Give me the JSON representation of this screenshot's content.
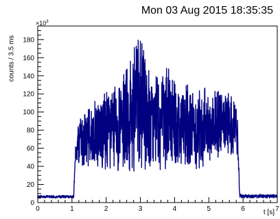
{
  "header": {
    "timestamp": "Mon 03 Aug 2015 18:35:35"
  },
  "chart_data": {
    "type": "line",
    "title": "",
    "xlabel": "t [s]",
    "ylabel": "counts / 3.5 ms",
    "y_multiplier_label": "×10",
    "y_multiplier_exponent": "3",
    "xlim": [
      0,
      7
    ],
    "ylim": [
      0,
      195
    ],
    "x_ticks": [
      0,
      1,
      2,
      3,
      4,
      5,
      6,
      7
    ],
    "y_ticks": [
      0,
      20,
      40,
      60,
      80,
      100,
      120,
      140,
      160,
      180
    ],
    "grid": false,
    "series": [
      {
        "color": "#000080",
        "envelope": {
          "x": [
            0.0,
            1.0,
            1.05,
            1.1,
            1.2,
            1.4,
            1.6,
            1.8,
            2.0,
            2.2,
            2.4,
            2.6,
            2.8,
            3.0,
            3.2,
            3.4,
            3.6,
            3.8,
            4.0,
            4.2,
            4.4,
            4.6,
            4.8,
            5.0,
            5.2,
            5.4,
            5.6,
            5.8,
            5.85,
            5.9,
            6.0,
            7.0
          ],
          "upper": [
            8,
            8,
            8,
            62,
            90,
            100,
            110,
            120,
            125,
            128,
            135,
            150,
            170,
            190,
            150,
            140,
            140,
            150,
            135,
            135,
            130,
            130,
            125,
            130,
            125,
            125,
            120,
            120,
            85,
            10,
            9,
            9
          ],
          "lower": [
            5,
            5,
            5,
            42,
            40,
            40,
            40,
            38,
            36,
            36,
            35,
            34,
            34,
            33,
            35,
            35,
            36,
            36,
            35,
            34,
            35,
            36,
            38,
            45,
            48,
            50,
            52,
            55,
            50,
            5,
            5,
            5
          ]
        }
      }
    ]
  }
}
